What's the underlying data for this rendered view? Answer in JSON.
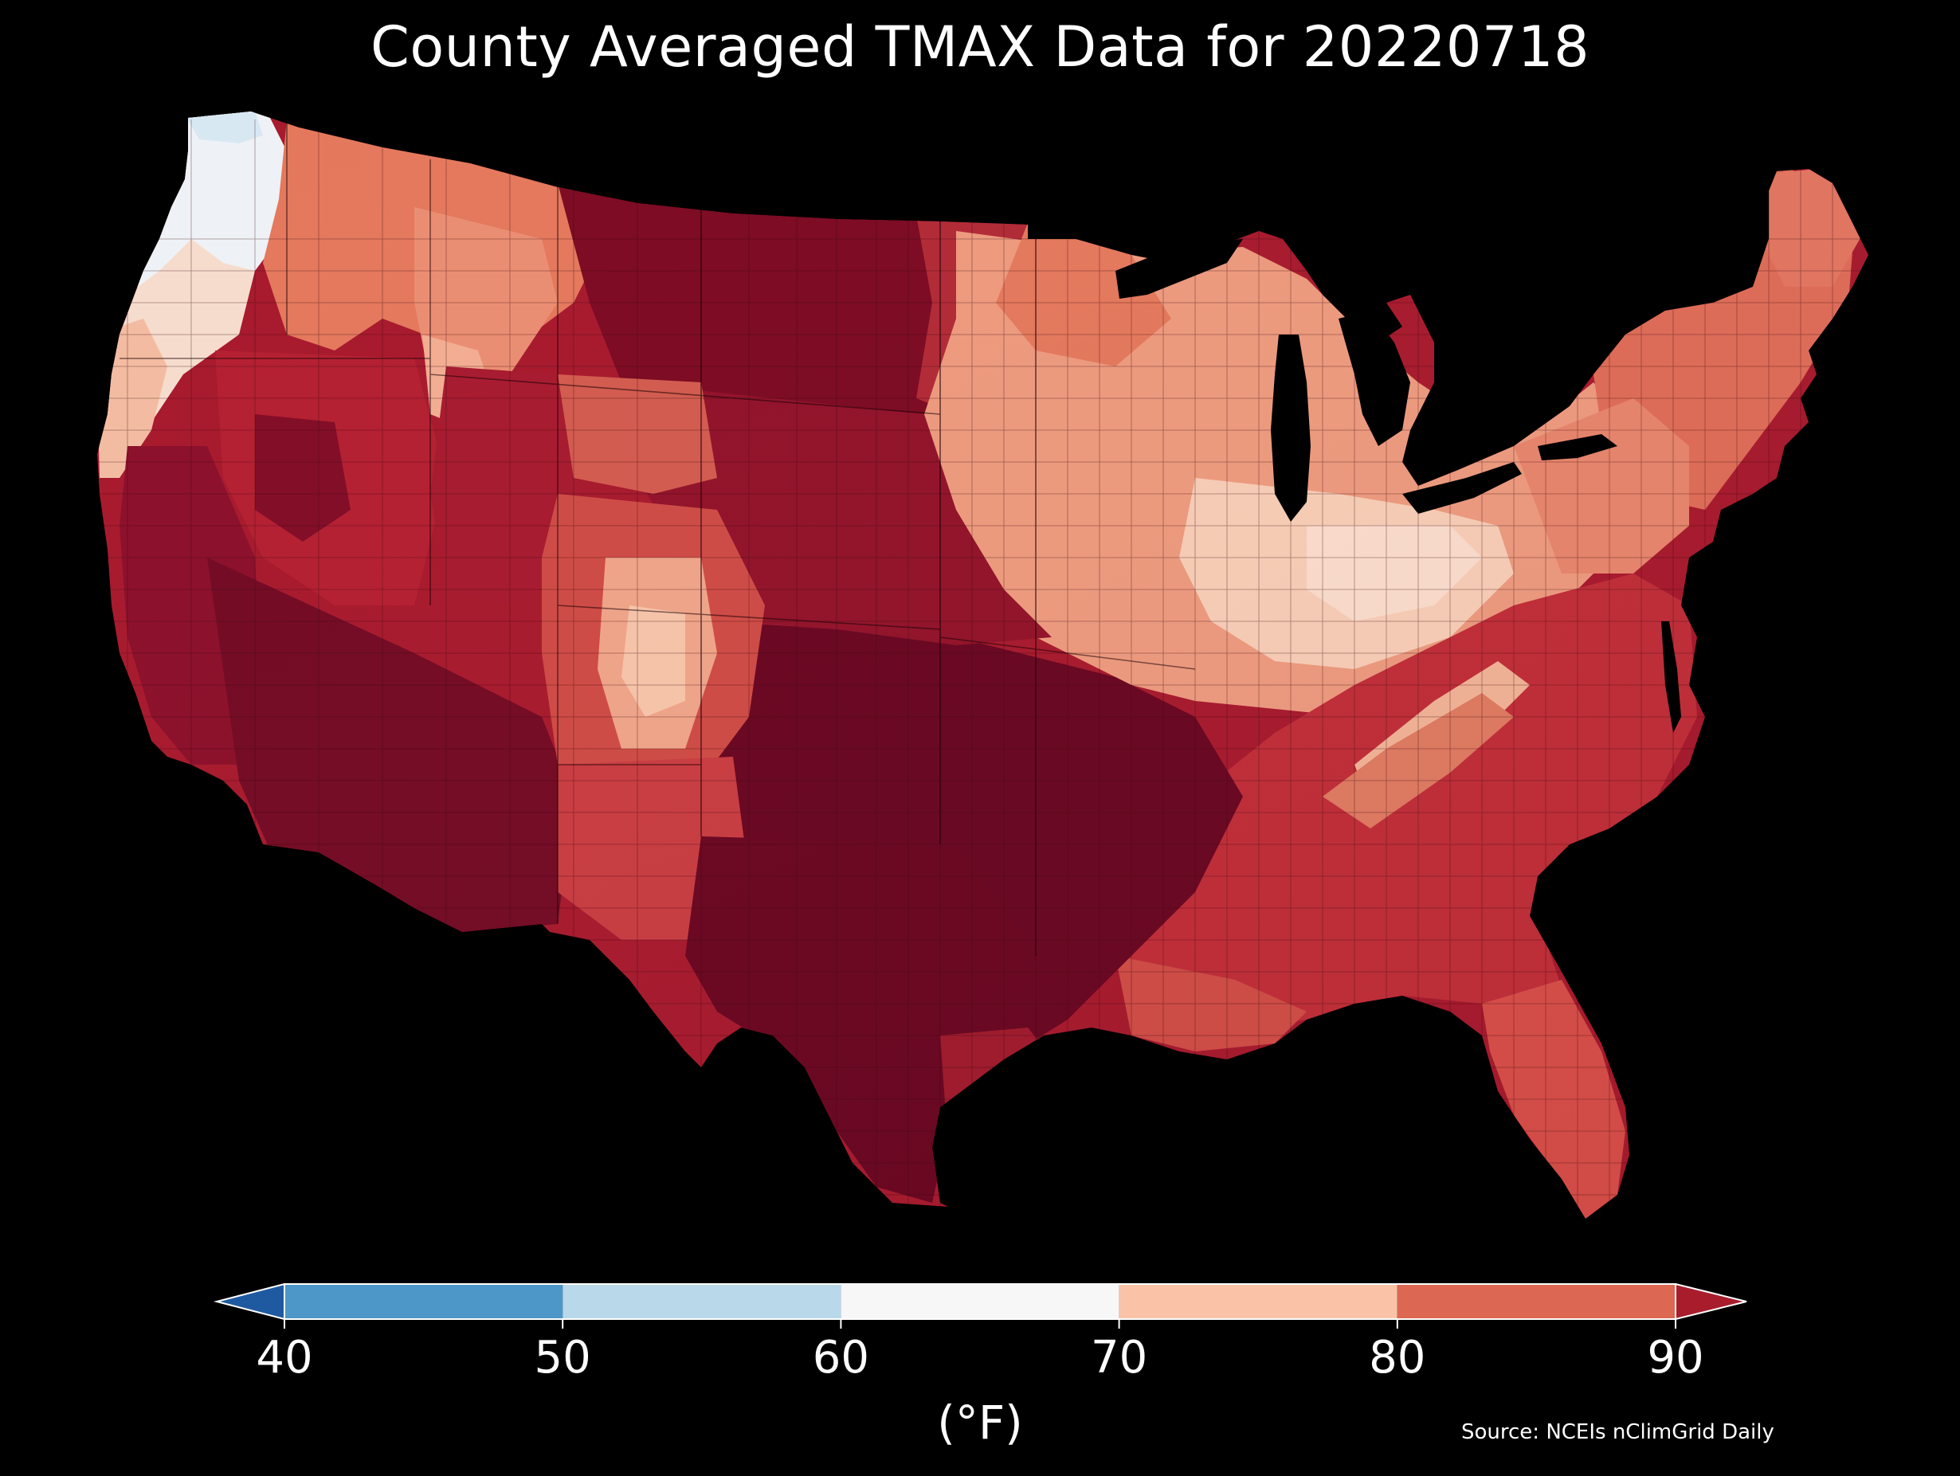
{
  "title": "County Averaged TMAX Data for 20220718",
  "map": {
    "region": "Contiguous United States",
    "variable": "TMAX"
  },
  "colorbar": {
    "units": "(°F)",
    "ticks": [
      "40",
      "50",
      "60",
      "70",
      "80",
      "90"
    ],
    "bins": [
      {
        "from": 40,
        "to": 50,
        "color": "#4c97c8"
      },
      {
        "from": 50,
        "to": 60,
        "color": "#b9d8ea"
      },
      {
        "from": 60,
        "to": 70,
        "color": "#f7f7f7"
      },
      {
        "from": 70,
        "to": 80,
        "color": "#fac3a8"
      },
      {
        "from": 80,
        "to": 90,
        "color": "#dc6752"
      }
    ],
    "under_color": "#1f5aa0",
    "over_color": "#a91c2c"
  },
  "source": "Source: NCEIs nClimGrid Daily"
}
